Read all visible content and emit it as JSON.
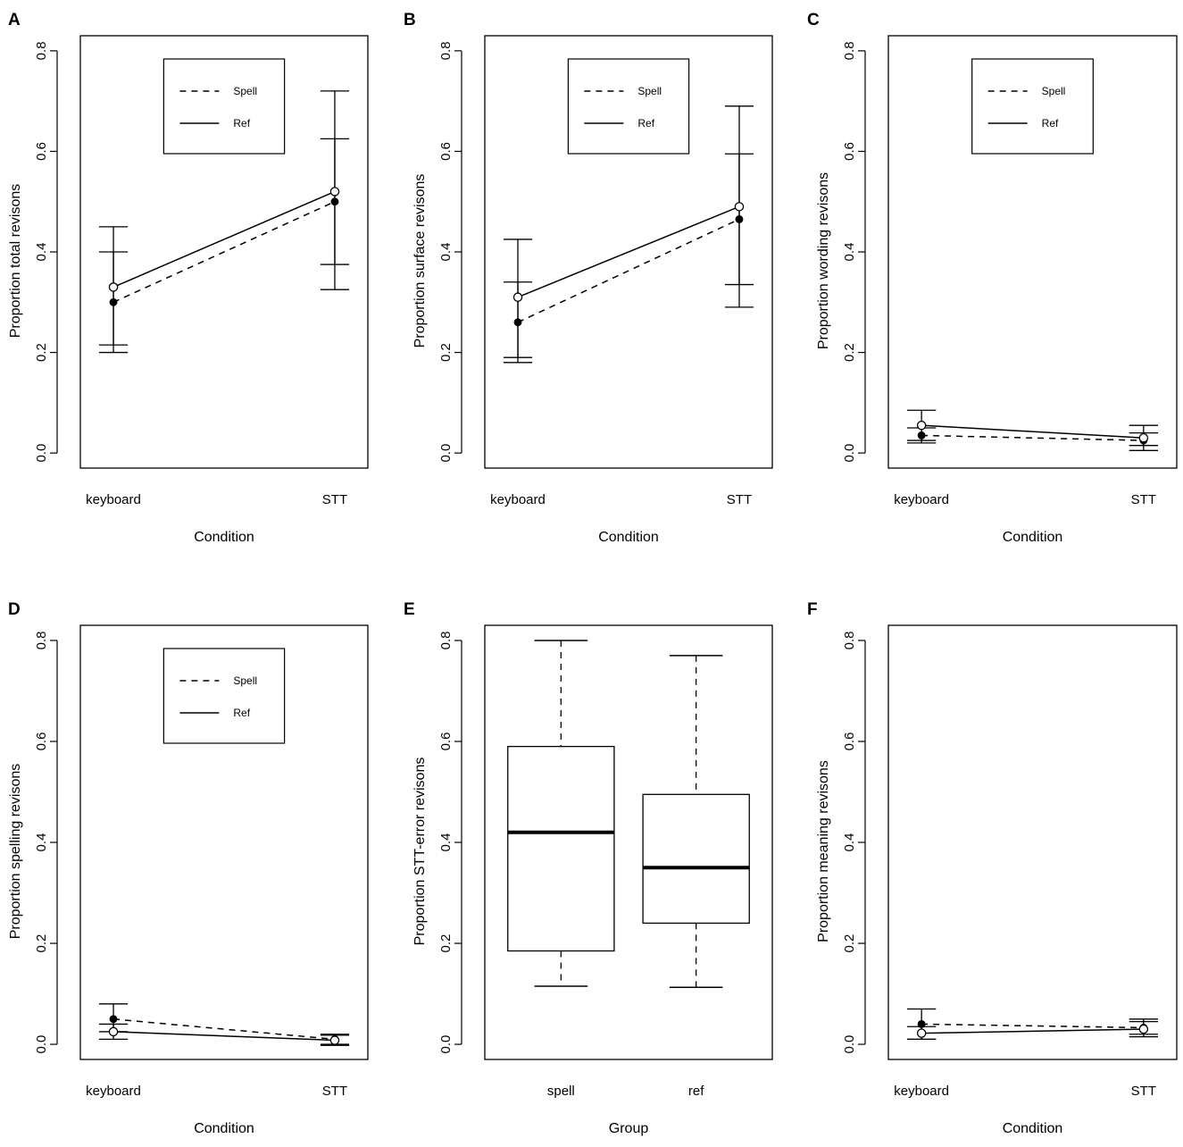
{
  "chart_data": [
    {
      "panel": "A",
      "type": "line",
      "xlabel": "Condition",
      "ylabel": "Proportion total revisons",
      "categories": [
        "keyboard",
        "STT"
      ],
      "ylim": [
        0,
        0.8
      ],
      "yticks": [
        "0.0",
        "0.2",
        "0.4",
        "0.6",
        "0.8"
      ],
      "legend": {
        "position": "top-center",
        "entries": [
          {
            "label": "Spell",
            "style": "dashed"
          },
          {
            "label": "Ref",
            "style": "solid"
          }
        ]
      },
      "series": [
        {
          "name": "Spell",
          "style": "dashed",
          "marker": "filled",
          "values": [
            0.3,
            0.5
          ],
          "ci_low": [
            0.2,
            0.325
          ],
          "ci_high": [
            0.4,
            0.72
          ]
        },
        {
          "name": "Ref",
          "style": "solid",
          "marker": "open",
          "values": [
            0.33,
            0.52
          ],
          "ci_low": [
            0.215,
            0.375
          ],
          "ci_high": [
            0.45,
            0.625
          ]
        }
      ]
    },
    {
      "panel": "B",
      "type": "line",
      "xlabel": "Condition",
      "ylabel": "Proportion surface revisons",
      "categories": [
        "keyboard",
        "STT"
      ],
      "ylim": [
        0,
        0.8
      ],
      "yticks": [
        "0.0",
        "0.2",
        "0.4",
        "0.6",
        "0.8"
      ],
      "legend": {
        "position": "top-center",
        "entries": [
          {
            "label": "Spell",
            "style": "dashed"
          },
          {
            "label": "Ref",
            "style": "solid"
          }
        ]
      },
      "series": [
        {
          "name": "Spell",
          "style": "dashed",
          "marker": "filled",
          "values": [
            0.26,
            0.465
          ],
          "ci_low": [
            0.18,
            0.29
          ],
          "ci_high": [
            0.34,
            0.69
          ]
        },
        {
          "name": "Ref",
          "style": "solid",
          "marker": "open",
          "values": [
            0.31,
            0.49
          ],
          "ci_low": [
            0.19,
            0.335
          ],
          "ci_high": [
            0.425,
            0.595
          ]
        }
      ]
    },
    {
      "panel": "C",
      "type": "line",
      "xlabel": "Condition",
      "ylabel": "Proportion wording revisons",
      "categories": [
        "keyboard",
        "STT"
      ],
      "ylim": [
        0,
        0.8
      ],
      "yticks": [
        "0.0",
        "0.2",
        "0.4",
        "0.6",
        "0.8"
      ],
      "legend": {
        "position": "top-center",
        "entries": [
          {
            "label": "Spell",
            "style": "dashed"
          },
          {
            "label": "Ref",
            "style": "solid"
          }
        ]
      },
      "series": [
        {
          "name": "Spell",
          "style": "dashed",
          "marker": "filled",
          "values": [
            0.035,
            0.025
          ],
          "ci_low": [
            0.02,
            0.005
          ],
          "ci_high": [
            0.05,
            0.04
          ]
        },
        {
          "name": "Ref",
          "style": "solid",
          "marker": "open",
          "values": [
            0.055,
            0.03
          ],
          "ci_low": [
            0.025,
            0.015
          ],
          "ci_high": [
            0.085,
            0.055
          ]
        }
      ]
    },
    {
      "panel": "D",
      "type": "line",
      "xlabel": "Condition",
      "ylabel": "Proportion spelling revisons",
      "categories": [
        "keyboard",
        "STT"
      ],
      "ylim": [
        0,
        0.8
      ],
      "yticks": [
        "0.0",
        "0.2",
        "0.4",
        "0.6",
        "0.8"
      ],
      "legend": {
        "position": "top-center",
        "entries": [
          {
            "label": "Spell",
            "style": "dashed"
          },
          {
            "label": "Ref",
            "style": "solid"
          }
        ]
      },
      "series": [
        {
          "name": "Spell",
          "style": "dashed",
          "marker": "filled",
          "values": [
            0.05,
            0.01
          ],
          "ci_low": [
            0.025,
            0.0
          ],
          "ci_high": [
            0.08,
            0.02
          ]
        },
        {
          "name": "Ref",
          "style": "solid",
          "marker": "open",
          "values": [
            0.025,
            0.008
          ],
          "ci_low": [
            0.01,
            -0.002
          ],
          "ci_high": [
            0.04,
            0.018
          ]
        }
      ]
    },
    {
      "panel": "E",
      "type": "box",
      "xlabel": "Group",
      "ylabel": "Proportion STT-error revisons",
      "categories": [
        "spell",
        "ref"
      ],
      "ylim": [
        0,
        0.8
      ],
      "yticks": [
        "0.0",
        "0.2",
        "0.4",
        "0.6",
        "0.8"
      ],
      "boxes": [
        {
          "name": "spell",
          "min": 0.115,
          "q1": 0.185,
          "median": 0.42,
          "q3": 0.59,
          "max": 0.8
        },
        {
          "name": "ref",
          "min": 0.113,
          "q1": 0.24,
          "median": 0.35,
          "q3": 0.495,
          "max": 0.77
        }
      ]
    },
    {
      "panel": "F",
      "type": "line",
      "xlabel": "Condition",
      "ylabel": "Proportion meaning revisons",
      "categories": [
        "keyboard",
        "STT"
      ],
      "ylim": [
        0,
        0.8
      ],
      "yticks": [
        "0.0",
        "0.2",
        "0.4",
        "0.6",
        "0.8"
      ],
      "series": [
        {
          "name": "Spell",
          "style": "dashed",
          "marker": "filled",
          "values": [
            0.04,
            0.033
          ],
          "ci_low": [
            0.01,
            0.02
          ],
          "ci_high": [
            0.07,
            0.045
          ]
        },
        {
          "name": "Ref",
          "style": "solid",
          "marker": "open",
          "values": [
            0.022,
            0.03
          ],
          "ci_low": [
            0.01,
            0.015
          ],
          "ci_high": [
            0.035,
            0.05
          ]
        }
      ]
    }
  ]
}
